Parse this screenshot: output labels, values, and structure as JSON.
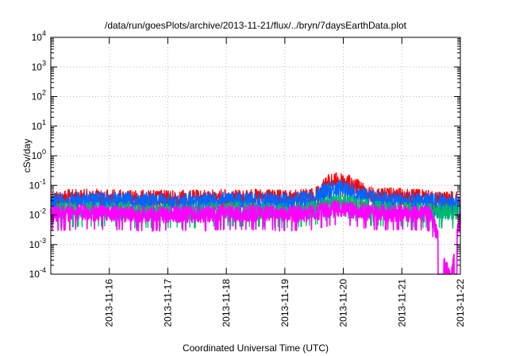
{
  "chart_data": {
    "type": "line",
    "title": "/data/run/goesPlots/archive/2013-11-21/flux/../bryn/7daysEarthData.plot",
    "xlabel": "Coordinated Universal Time (UTC)",
    "ylabel": "cSv/day",
    "x_ticks": [
      "2013-11-16",
      "2013-11-17",
      "2013-11-18",
      "2013-11-19",
      "2013-11-20",
      "2013-11-21",
      "2013-11-22"
    ],
    "x_range": [
      "2013-11-15 00:00",
      "2013-11-22 00:00"
    ],
    "y_scale": "log",
    "ylim": [
      0.0001,
      10000
    ],
    "y_ticks": [
      {
        "base": "10",
        "exp": "-4"
      },
      {
        "base": "10",
        "exp": "-3"
      },
      {
        "base": "10",
        "exp": "-2"
      },
      {
        "base": "10",
        "exp": "-1"
      },
      {
        "base": "10",
        "exp": "0"
      },
      {
        "base": "10",
        "exp": "1"
      },
      {
        "base": "10",
        "exp": "2"
      },
      {
        "base": "10",
        "exp": "3"
      },
      {
        "base": "10",
        "exp": "4"
      }
    ],
    "grid": true,
    "series": [
      {
        "color": "#ff0000",
        "x": [
          "2013-11-15 00:00",
          "2013-11-15 12:00",
          "2013-11-16 00:00",
          "2013-11-16 12:00",
          "2013-11-17 00:00",
          "2013-11-17 12:00",
          "2013-11-18 00:00",
          "2013-11-18 12:00",
          "2013-11-19 00:00",
          "2013-11-19 12:00",
          "2013-11-19 18:00",
          "2013-11-20 00:00",
          "2013-11-20 12:00",
          "2013-11-21 00:00",
          "2013-11-21 12:00",
          "2013-11-22 00:00"
        ],
        "values": [
          0.07,
          0.075,
          0.075,
          0.07,
          0.07,
          0.07,
          0.075,
          0.075,
          0.07,
          0.08,
          0.25,
          0.28,
          0.09,
          0.08,
          0.07,
          0.06
        ]
      },
      {
        "color": "#0066ff",
        "x": [
          "2013-11-15 00:00",
          "2013-11-15 12:00",
          "2013-11-16 00:00",
          "2013-11-16 12:00",
          "2013-11-17 00:00",
          "2013-11-17 12:00",
          "2013-11-18 00:00",
          "2013-11-18 12:00",
          "2013-11-19 00:00",
          "2013-11-19 12:00",
          "2013-11-19 18:00",
          "2013-11-20 00:00",
          "2013-11-20 12:00",
          "2013-11-21 00:00",
          "2013-11-21 12:00",
          "2013-11-22 00:00"
        ],
        "values": [
          0.055,
          0.06,
          0.06,
          0.055,
          0.055,
          0.055,
          0.06,
          0.06,
          0.055,
          0.07,
          0.15,
          0.17,
          0.07,
          0.06,
          0.055,
          0.05
        ]
      },
      {
        "color": "#00bb66",
        "x": [
          "2013-11-15 00:00",
          "2013-11-15 12:00",
          "2013-11-16 00:00",
          "2013-11-16 12:00",
          "2013-11-17 00:00",
          "2013-11-17 12:00",
          "2013-11-18 00:00",
          "2013-11-18 12:00",
          "2013-11-19 00:00",
          "2013-11-19 12:00",
          "2013-11-19 18:00",
          "2013-11-20 00:00",
          "2013-11-20 12:00",
          "2013-11-21 00:00",
          "2013-11-21 12:00",
          "2013-11-22 00:00"
        ],
        "values": [
          0.025,
          0.028,
          0.028,
          0.025,
          0.025,
          0.025,
          0.03,
          0.028,
          0.025,
          0.03,
          0.05,
          0.055,
          0.03,
          0.028,
          0.025,
          0.025
        ]
      },
      {
        "color": "#ff00ff",
        "x": [
          "2013-11-15 00:00",
          "2013-11-15 12:00",
          "2013-11-16 00:00",
          "2013-11-16 12:00",
          "2013-11-17 00:00",
          "2013-11-17 12:00",
          "2013-11-18 00:00",
          "2013-11-18 12:00",
          "2013-11-19 00:00",
          "2013-11-19 12:00",
          "2013-11-19 18:00",
          "2013-11-20 00:00",
          "2013-11-20 12:00",
          "2013-11-21 00:00",
          "2013-11-21 12:00",
          "2013-11-21 20:00",
          "2013-11-22 00:00"
        ],
        "values": [
          0.02,
          0.022,
          0.022,
          0.02,
          0.02,
          0.02,
          0.022,
          0.022,
          0.02,
          0.022,
          0.03,
          0.032,
          0.022,
          0.022,
          0.02,
          0.0001,
          0.02
        ]
      }
    ]
  }
}
